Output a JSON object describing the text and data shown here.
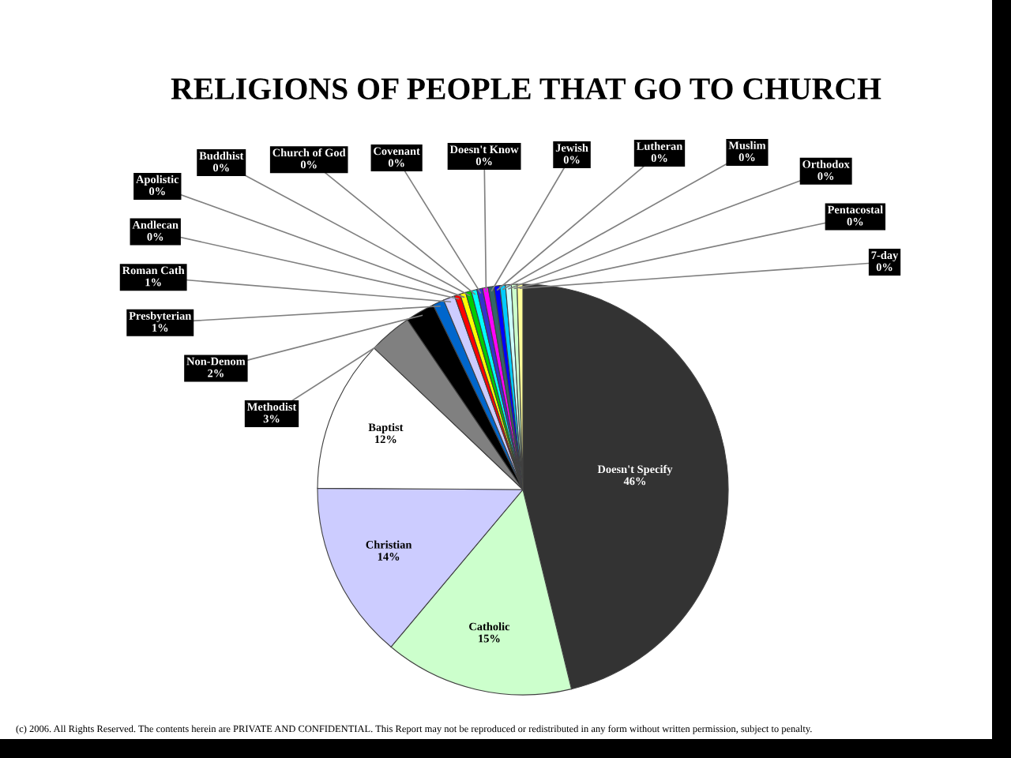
{
  "chart_data": {
    "type": "pie",
    "title": "RELIGIONS OF PEOPLE THAT GO TO CHURCH",
    "categories": [
      "Doesn't Specify",
      "Catholic",
      "Christian",
      "Baptist",
      "Methodist",
      "Non-Denom",
      "Presbyterian",
      "Roman Cath",
      "Andlecan",
      "Apolistic",
      "Buddhist",
      "Church of God",
      "Covenant",
      "Doesn't Know",
      "Jewish",
      "Lutheran",
      "Muslim",
      "Orthodox",
      "Pentacostal",
      "7-day"
    ],
    "values": [
      46.2,
      14.9,
      14.0,
      12.0,
      3.4,
      2.3,
      0.9,
      0.9,
      0.45,
      0.45,
      0.45,
      0.45,
      0.45,
      0.45,
      0.45,
      0.45,
      0.45,
      0.45,
      0.45,
      0.45
    ],
    "value_labels": [
      "46%",
      "15%",
      "14%",
      "12%",
      "3%",
      "2%",
      "1%",
      "1%",
      "0%",
      "0%",
      "0%",
      "0%",
      "0%",
      "0%",
      "0%",
      "0%",
      "0%",
      "0%",
      "0%",
      "0%"
    ],
    "colors": [
      "#333333",
      "#ccffcc",
      "#ccccff",
      "#ffffff",
      "#808080",
      "#000000",
      "#0066cc",
      "#ccccff",
      "#ff0000",
      "#ffff00",
      "#00cc00",
      "#00ffff",
      "#3333cc",
      "#ff00ff",
      "#336666",
      "#0000ff",
      "#00ccff",
      "#ccffff",
      "#ccffcc",
      "#ffff99"
    ],
    "annotations": [
      "(c) 2006. All Rights Reserved. The contents herein are PRIVATE AND CONFIDENTIAL. This Report may not be reproduced or redistributed in any form without written permission, subject to penalty."
    ]
  }
}
